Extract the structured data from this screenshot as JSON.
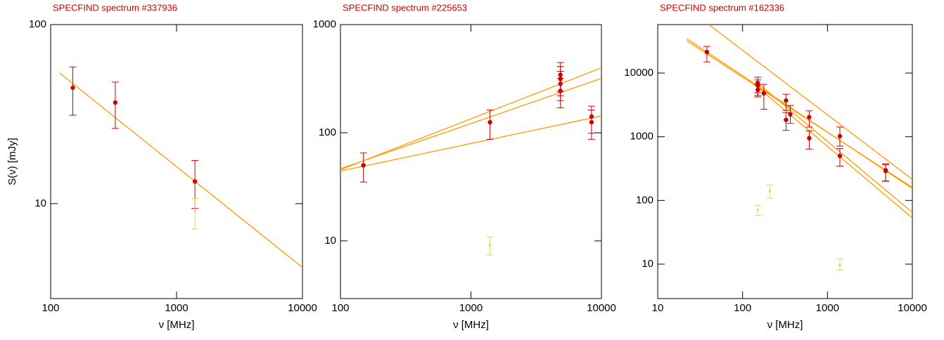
{
  "chart_data": [
    {
      "type": "scatter",
      "title": "SPECFIND spectrum #337936",
      "xlabel": "ν [MHz]",
      "ylabel": "S(ν) [mJy]",
      "xlog": true,
      "ylog": true,
      "xlim": [
        100,
        10000
      ],
      "ylim": [
        2.95,
        100
      ],
      "xticks": [
        100,
        1000,
        10000
      ],
      "yticks": [
        10,
        100
      ],
      "series": [
        {
          "color": "#cc0000",
          "x": [
            150,
            326,
            1400
          ],
          "values": [
            44.4,
            36.7,
            13.3
          ],
          "err_low": [
            31.2,
            26.3,
            9.4
          ],
          "err_high": [
            58,
            47.7,
            17.4
          ]
        },
        {
          "color": "#d8d860",
          "x": [
            1400
          ],
          "values": [
            9.1
          ],
          "err_low": [
            7.2
          ],
          "err_high": [
            10.7
          ]
        }
      ],
      "fits": [
        {
          "color": "#ff9900",
          "x": [
            118,
            10000
          ],
          "values": [
            53.6,
            4.4
          ]
        }
      ]
    },
    {
      "type": "scatter",
      "title": "SPECFIND spectrum #225653",
      "xlabel": "ν [MHz]",
      "xlog": true,
      "ylog": true,
      "xlim": [
        100,
        10000
      ],
      "ylim": [
        2.93,
        1000
      ],
      "xticks": [
        100,
        1000,
        10000
      ],
      "yticks": [
        10,
        100,
        1000
      ],
      "series": [
        {
          "color": "#cc0000",
          "x": [
            150,
            1400,
            4850,
            4850,
            4850,
            4850,
            8400,
            8400
          ],
          "values": [
            50,
            125,
            343,
            314,
            283,
            244,
            141,
            125
          ],
          "err_low": [
            35,
            87,
            240,
            220,
            198,
            170,
            99,
            87
          ],
          "err_high": [
            65,
            162,
            446,
            410,
            370,
            318,
            176,
            162
          ]
        },
        {
          "color": "#d8d860",
          "x": [
            1400
          ],
          "values": [
            9.1
          ],
          "err_low": [
            7.4
          ],
          "err_high": [
            10.9
          ]
        }
      ],
      "fits": [
        {
          "color": "#ff9900",
          "x": [
            100,
            10000
          ],
          "values": [
            45.5,
            398
          ]
        },
        {
          "color": "#ff9900",
          "x": [
            100,
            10000
          ],
          "values": [
            46.5,
            318
          ]
        },
        {
          "color": "#ff9900",
          "x": [
            100,
            10000
          ],
          "values": [
            44.2,
            143
          ]
        }
      ]
    },
    {
      "type": "scatter",
      "title": "SPECFIND spectrum #162336",
      "xlabel": "ν [MHz]",
      "xlog": true,
      "ylog": true,
      "xlim": [
        10,
        10000
      ],
      "ylim": [
        2.88,
        57700
      ],
      "xticks": [
        10,
        100,
        1000,
        10000
      ],
      "yticks": [
        10,
        100,
        1000,
        10000
      ],
      "series": [
        {
          "color": "#cc0000",
          "x": [
            38,
            151,
            151,
            151,
            178,
            325,
            325,
            365,
            610,
            610,
            1400,
            1400,
            4850,
            4850
          ],
          "values": [
            21400,
            7000,
            6350,
            5440,
            4800,
            3700,
            1840,
            2250,
            2030,
            950,
            1020,
            500,
            298,
            290
          ],
          "err_low": [
            15000,
            4900,
            4450,
            4220,
            2700,
            2590,
            1260,
            1620,
            1420,
            640,
            714,
            345,
            200,
            203
          ],
          "err_high": [
            26200,
            8600,
            7800,
            6650,
            6650,
            4650,
            2400,
            3100,
            2550,
            1240,
            1420,
            650,
            365,
            377
          ]
        },
        {
          "color": "#d8d860",
          "x": [
            151,
            209,
            1400
          ],
          "values": [
            71,
            140,
            9.7
          ],
          "err_low": [
            58,
            109,
            8
          ],
          "err_high": [
            84,
            175,
            12
          ]
        }
      ],
      "fits": [
        {
          "color": "#ff9900",
          "x": [
            22,
            10000
          ],
          "values": [
            34700,
            154
          ]
        },
        {
          "color": "#ff9900",
          "x": [
            22,
            10000
          ],
          "values": [
            32000,
            160
          ]
        },
        {
          "color": "#ff9900",
          "x": [
            40,
            10000
          ],
          "values": [
            57700,
            214
          ]
        },
        {
          "color": "#ff9900",
          "x": [
            150,
            10000
          ],
          "values": [
            7000,
            65
          ]
        },
        {
          "color": "#ff9900",
          "x": [
            150,
            10000
          ],
          "values": [
            6000,
            53
          ]
        }
      ]
    }
  ]
}
